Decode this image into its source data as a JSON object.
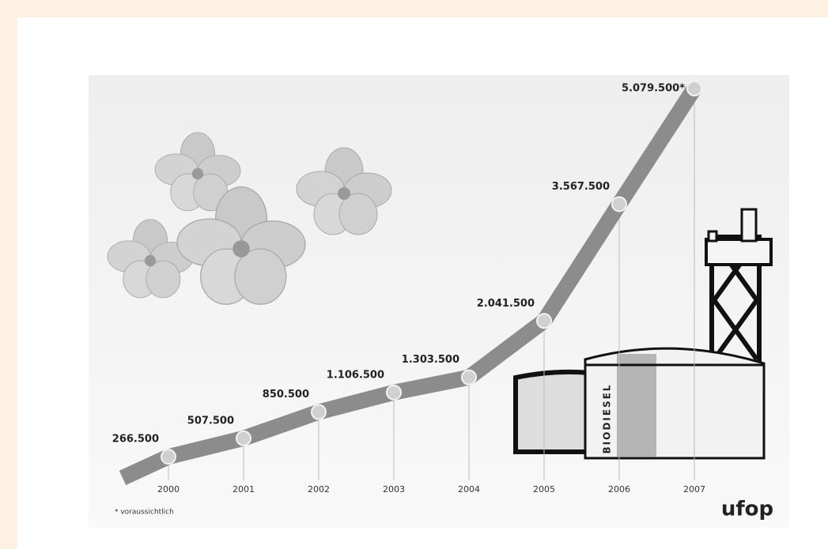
{
  "chart_data": {
    "type": "line",
    "categories": [
      "2000",
      "2001",
      "2002",
      "2003",
      "2004",
      "2005",
      "2006",
      "2007"
    ],
    "values": [
      266500,
      507500,
      850500,
      1106500,
      1303500,
      2041500,
      3567500,
      5079500
    ],
    "value_labels": [
      "266.500",
      "507.500",
      "850.500",
      "1.106.500",
      "1.303.500",
      "2.041.500",
      "3.567.500",
      "5.079.500*"
    ],
    "color": "#8c8c8c",
    "footnote": "* voraussichtlich",
    "building_label": "BIODIESEL",
    "logo": "ufop"
  }
}
